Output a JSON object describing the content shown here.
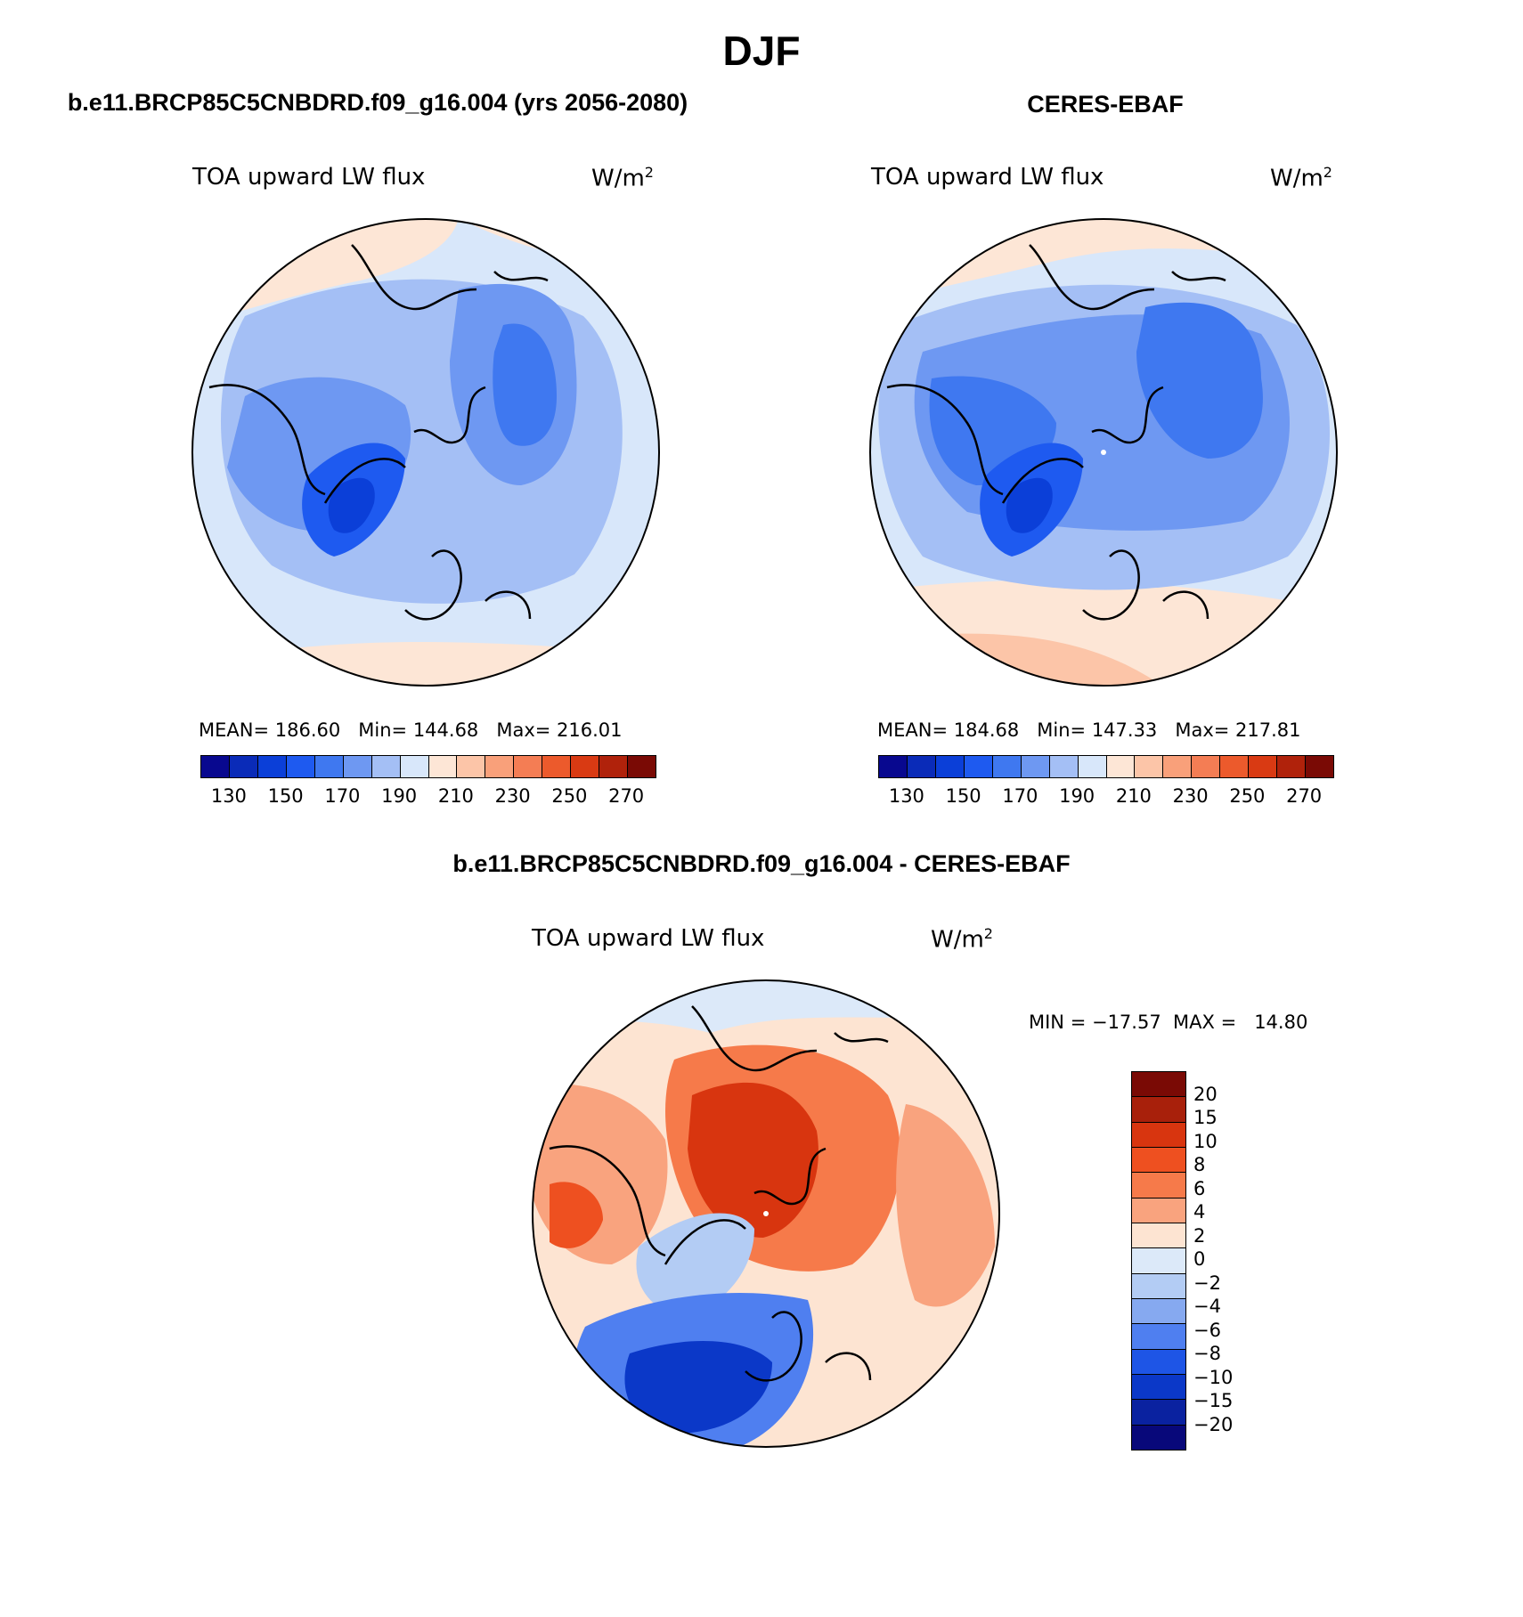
{
  "chart_data": [
    {
      "type": "heatmap",
      "projection": "north polar stereographic",
      "season": "DJF",
      "case": "b.e11.BRCP85C5CNBDRD.f09_g16.004 (yrs 2056-2080)",
      "variable": "TOA upward LW flux",
      "units_base": "W/m",
      "units_exp": "2",
      "stats": {
        "mean_label": "MEAN=",
        "mean": "186.60",
        "min_label": "Min=",
        "min": "144.68",
        "max_label": "Max=",
        "max": "216.01"
      },
      "levels": [
        120,
        130,
        140,
        150,
        160,
        170,
        180,
        190,
        200,
        210,
        220,
        230,
        240,
        250,
        260,
        270
      ],
      "tick_labels": [
        "130",
        "150",
        "170",
        "190",
        "210",
        "230",
        "250",
        "270"
      ]
    },
    {
      "type": "heatmap",
      "projection": "north polar stereographic",
      "season": "DJF",
      "case": "CERES-EBAF",
      "variable": "TOA upward LW flux",
      "units_base": "W/m",
      "units_exp": "2",
      "stats": {
        "mean_label": "MEAN=",
        "mean": "184.68",
        "min_label": "Min=",
        "min": "147.33",
        "max_label": "Max=",
        "max": "217.81"
      },
      "levels": [
        120,
        130,
        140,
        150,
        160,
        170,
        180,
        190,
        200,
        210,
        220,
        230,
        240,
        250,
        260,
        270
      ],
      "tick_labels": [
        "130",
        "150",
        "170",
        "190",
        "210",
        "230",
        "250",
        "270"
      ]
    },
    {
      "type": "heatmap",
      "projection": "north polar stereographic",
      "season": "DJF",
      "case": "b.e11.BRCP85C5CNBDRD.f09_g16.004 - CERES-EBAF",
      "variable": "TOA upward LW flux",
      "units_base": "W/m",
      "units_exp": "2",
      "stats_text": "MIN = −17.57  MAX =   14.80",
      "levels": [
        20,
        15,
        10,
        8,
        6,
        4,
        2,
        0,
        -2,
        -4,
        -6,
        -8,
        -10,
        -15,
        -20
      ],
      "tick_labels": [
        "20",
        "15",
        "10",
        "8",
        "6",
        "4",
        "2",
        "0",
        "−2",
        "−4",
        "−6",
        "−8",
        "−10",
        "−15",
        "−20"
      ]
    }
  ],
  "page": {
    "title": "DJF"
  },
  "colors": {
    "abs_scale": [
      "#08088f",
      "#0a2bb8",
      "#0b3fd8",
      "#1e5af0",
      "#3f78f0",
      "#6e98f2",
      "#a4bff5",
      "#d8e7fa",
      "#fde6d6",
      "#fcc5a8",
      "#f9a07a",
      "#f47d54",
      "#ec5a2c",
      "#d93a13",
      "#b0220b",
      "#7a0a05"
    ],
    "diff_scale": [
      "#7a0a05",
      "#a8200b",
      "#d8350f",
      "#ee5020",
      "#f67a4a",
      "#f9a37e",
      "#fde4d2",
      "#dce9f9",
      "#b3ccf4",
      "#86a9f0",
      "#4f7ff0",
      "#1e55e6",
      "#0b38c8",
      "#0a22a0",
      "#08087a"
    ]
  }
}
